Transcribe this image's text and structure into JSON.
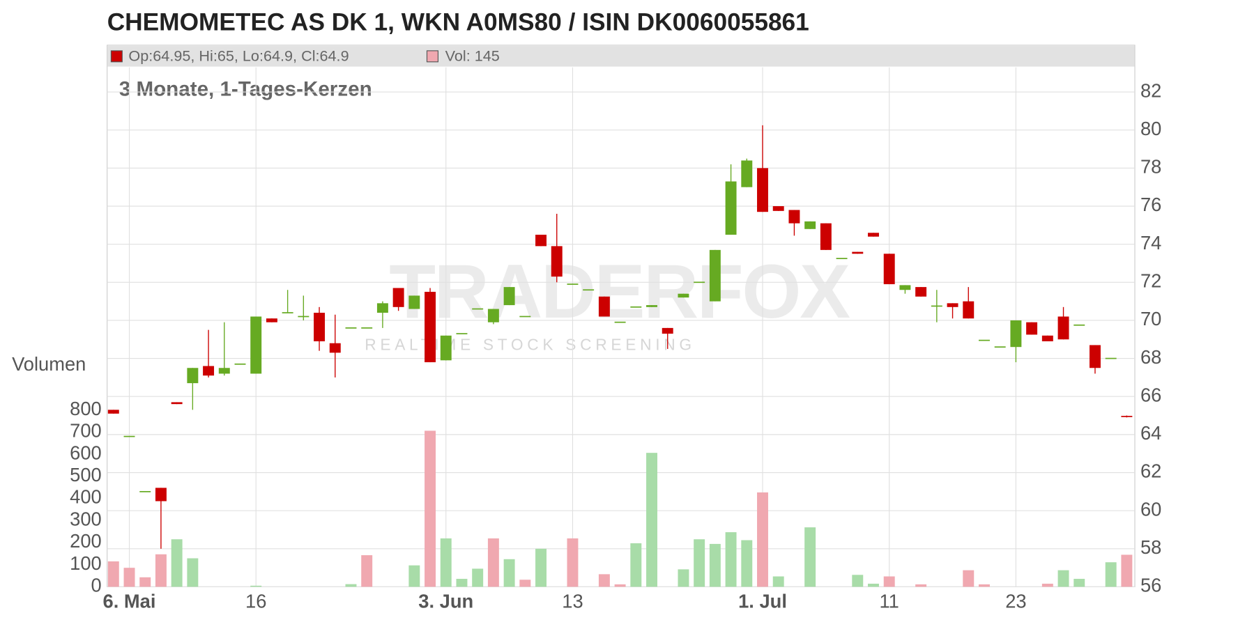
{
  "chart_data": {
    "type": "candlestick",
    "title": "CHEMOMETEC AS DK 1, WKN A0MS80 / ISIN DK0060055861",
    "subtitle": "3 Monate, 1-Tages-Kerzen",
    "ohlc_label": "Op:64.95, Hi:65, Lo:64.9, Cl:64.9",
    "volume_label": "Vol: 145",
    "volume_axis_label": "Volumen",
    "watermark": "TRADERFOX",
    "watermark_subtitle": "REALTIME STOCK SCREENING",
    "categories": [
      null,
      "6. Mai",
      null,
      null,
      null,
      null,
      null,
      null,
      null,
      "16",
      null,
      null,
      null,
      null,
      null,
      null,
      null,
      null,
      null,
      null,
      null,
      "3. Jun",
      null,
      null,
      null,
      null,
      null,
      null,
      null,
      "13",
      null,
      null,
      null,
      null,
      null,
      null,
      null,
      null,
      null,
      null,
      null,
      "1. Jul",
      null,
      null,
      null,
      null,
      null,
      null,
      null,
      "11",
      null,
      null,
      null,
      null,
      null,
      null,
      null,
      "23",
      null,
      null,
      null,
      null,
      null,
      null,
      null
    ],
    "open": [
      65.3,
      63.9,
      61.0,
      61.2,
      65.7,
      66.7,
      67.6,
      67.2,
      67.7,
      67.2,
      70.1,
      70.4,
      70.2,
      70.4,
      68.8,
      69.6,
      69.6,
      70.4,
      71.7,
      70.6,
      71.5,
      67.9,
      69.3,
      70.6,
      69.9,
      70.8,
      70.2,
      74.5,
      73.9,
      71.9,
      71.6,
      71.25,
      69.9,
      70.7,
      70.7,
      69.6,
      71.2,
      72.0,
      71.0,
      74.5,
      77.0,
      78.0,
      76.0,
      75.8,
      74.8,
      75.1,
      73.25,
      73.6,
      74.6,
      73.5,
      71.6,
      71.75,
      70.75,
      70.9,
      71.0,
      68.95,
      68.6,
      68.6,
      69.9,
      69.2,
      70.2,
      69.75,
      68.7,
      68.0,
      64.95
    ],
    "high": [
      65.3,
      63.9,
      61.0,
      61.2,
      65.7,
      67.5,
      69.5,
      69.9,
      67.7,
      70.2,
      70.1,
      71.6,
      71.3,
      70.7,
      70.3,
      69.6,
      69.6,
      71.0,
      71.7,
      71.3,
      71.7,
      69.2,
      69.3,
      70.6,
      70.6,
      71.75,
      70.2,
      74.5,
      75.6,
      71.9,
      71.6,
      71.25,
      69.9,
      70.7,
      70.8,
      69.6,
      71.4,
      72.0,
      73.7,
      78.2,
      78.5,
      80.25,
      76.0,
      75.8,
      75.2,
      75.1,
      73.25,
      73.6,
      74.6,
      73.5,
      71.85,
      71.75,
      71.6,
      70.9,
      71.75,
      68.95,
      68.6,
      70.0,
      69.9,
      69.2,
      70.7,
      69.75,
      68.7,
      68.0,
      65
    ],
    "low": [
      65.1,
      63.9,
      61.0,
      58.0,
      65.6,
      65.3,
      67.0,
      67.1,
      67.7,
      67.2,
      69.9,
      70.4,
      70.0,
      68.4,
      67.0,
      69.6,
      69.6,
      69.6,
      70.5,
      70.6,
      67.8,
      67.9,
      69.3,
      70.6,
      69.8,
      70.8,
      70.2,
      73.9,
      72.0,
      71.9,
      71.6,
      70.2,
      69.9,
      70.7,
      70.7,
      68.5,
      71.2,
      72.0,
      71.0,
      74.5,
      77.0,
      75.7,
      75.75,
      74.45,
      74.8,
      73.7,
      73.25,
      73.5,
      74.4,
      71.9,
      71.4,
      71.25,
      69.9,
      70.1,
      70.1,
      68.95,
      68.6,
      67.8,
      69.25,
      68.9,
      69.0,
      69.75,
      67.2,
      68.0,
      64.9
    ],
    "close": [
      65.1,
      63.9,
      61.0,
      60.5,
      65.6,
      67.5,
      67.1,
      67.5,
      67.7,
      70.2,
      69.9,
      70.4,
      70.2,
      68.9,
      68.3,
      69.6,
      69.6,
      70.9,
      70.7,
      71.3,
      67.8,
      69.2,
      69.3,
      70.6,
      70.6,
      71.75,
      70.2,
      73.9,
      72.3,
      71.9,
      71.6,
      70.2,
      69.9,
      70.7,
      70.8,
      69.3,
      71.4,
      72.0,
      73.7,
      77.3,
      78.4,
      75.7,
      75.75,
      75.1,
      75.2,
      73.7,
      73.25,
      73.5,
      74.4,
      71.9,
      71.85,
      71.25,
      70.75,
      70.7,
      70.1,
      68.95,
      68.6,
      70.0,
      69.25,
      68.9,
      69.0,
      69.75,
      67.5,
      68.0,
      64.9
    ],
    "volume": [
      115,
      86,
      43,
      147,
      215,
      129,
      0,
      0,
      0,
      5,
      0,
      0,
      0,
      0,
      0,
      12,
      143,
      0,
      0,
      97,
      706,
      219,
      36,
      82,
      219,
      125,
      32,
      172,
      0,
      219,
      0,
      57,
      11,
      197,
      606,
      0,
      79,
      215,
      194,
      247,
      211,
      427,
      47,
      0,
      269,
      0,
      0,
      54,
      14,
      47,
      0,
      11,
      0,
      0,
      75,
      11,
      0,
      0,
      0,
      14,
      75,
      36,
      0,
      111,
      145
    ],
    "up_color": "#66aa22",
    "down_color": "#cc0000",
    "volume_up_color": "#a8dca8",
    "volume_down_color": "#f0a8b0",
    "ylim": [
      56,
      82
    ],
    "yticks": [
      56,
      58,
      60,
      62,
      64,
      66,
      68,
      70,
      72,
      74,
      76,
      78,
      80,
      82
    ],
    "volume_ylim": [
      0,
      800
    ],
    "volume_yticks": [
      0,
      100,
      200,
      300,
      400,
      500,
      600,
      700,
      800
    ],
    "grid": true
  }
}
